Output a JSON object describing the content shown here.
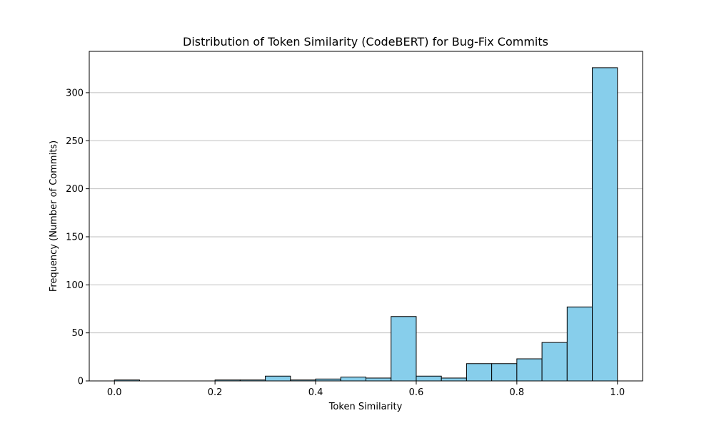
{
  "chart_data": {
    "type": "bar",
    "title": "Distribution of Token Similarity (CodeBERT) for Bug-Fix Commits",
    "xlabel": "Token Similarity",
    "ylabel": "Frequency (Number of Commits)",
    "xlim": [
      -0.05,
      1.05
    ],
    "ylim": [
      0,
      343
    ],
    "xticks": [
      0.0,
      0.2,
      0.4,
      0.6,
      0.8,
      1.0
    ],
    "xtick_labels": [
      "0.0",
      "0.2",
      "0.4",
      "0.6",
      "0.8",
      "1.0"
    ],
    "yticks": [
      0,
      50,
      100,
      150,
      200,
      250,
      300
    ],
    "ytick_labels": [
      "0",
      "50",
      "100",
      "150",
      "200",
      "250",
      "300"
    ],
    "grid": "y",
    "bar_color": "#87ceeb",
    "edge_color": "#000000",
    "bins": [
      {
        "start": 0.0,
        "end": 0.05,
        "count": 1
      },
      {
        "start": 0.05,
        "end": 0.1,
        "count": 0
      },
      {
        "start": 0.1,
        "end": 0.15,
        "count": 0
      },
      {
        "start": 0.15,
        "end": 0.2,
        "count": 0
      },
      {
        "start": 0.2,
        "end": 0.25,
        "count": 1
      },
      {
        "start": 0.25,
        "end": 0.3,
        "count": 1
      },
      {
        "start": 0.3,
        "end": 0.35,
        "count": 5
      },
      {
        "start": 0.35,
        "end": 0.4,
        "count": 1
      },
      {
        "start": 0.4,
        "end": 0.45,
        "count": 2
      },
      {
        "start": 0.45,
        "end": 0.5,
        "count": 4
      },
      {
        "start": 0.5,
        "end": 0.55,
        "count": 3
      },
      {
        "start": 0.55,
        "end": 0.6,
        "count": 67
      },
      {
        "start": 0.6,
        "end": 0.65,
        "count": 5
      },
      {
        "start": 0.65,
        "end": 0.7,
        "count": 3
      },
      {
        "start": 0.7,
        "end": 0.75,
        "count": 18
      },
      {
        "start": 0.75,
        "end": 0.8,
        "count": 18
      },
      {
        "start": 0.8,
        "end": 0.85,
        "count": 23
      },
      {
        "start": 0.85,
        "end": 0.9,
        "count": 40
      },
      {
        "start": 0.9,
        "end": 0.95,
        "count": 77
      },
      {
        "start": 0.95,
        "end": 1.0,
        "count": 326
      }
    ]
  }
}
